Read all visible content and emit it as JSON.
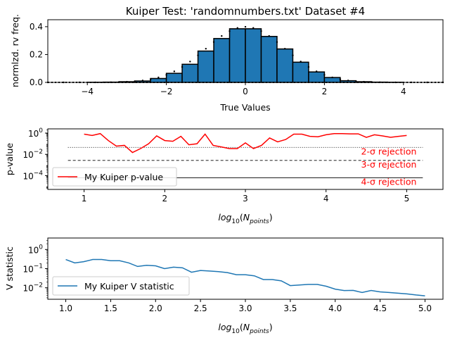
{
  "chart_data": [
    {
      "type": "bar",
      "title": "Kuiper Test: 'randomnumbers.txt' Dataset #4",
      "xlabel": "True Values",
      "ylabel": "normlzd. rv freq.",
      "xlim": [
        -5,
        5
      ],
      "ylim": [
        0,
        0.45
      ],
      "xticks": [
        -4,
        -2,
        0,
        2,
        4
      ],
      "xtick_labels": [
        "−4",
        "−2",
        "0",
        "2",
        "4"
      ],
      "yticks": [
        0.0,
        0.2,
        0.4
      ],
      "ytick_labels": [
        "0.0",
        "0.2",
        "0.4"
      ],
      "bar_color": "#1f77b4",
      "bin_edges": [
        -4.0,
        -3.6,
        -3.2,
        -2.8,
        -2.4,
        -2.0,
        -1.6,
        -1.2,
        -0.8,
        -0.4,
        0.0,
        0.4,
        0.8,
        1.2,
        1.6,
        2.0,
        2.4,
        2.8,
        3.2,
        3.6,
        4.0
      ],
      "bar_values": [
        0.001,
        0.002,
        0.005,
        0.01,
        0.028,
        0.065,
        0.13,
        0.225,
        0.315,
        0.385,
        0.385,
        0.33,
        0.24,
        0.145,
        0.075,
        0.035,
        0.012,
        0.005,
        0.002,
        0.001
      ],
      "reference_curve": {
        "style": "dotted",
        "x": [
          -5.0,
          -4.6,
          -4.2,
          -3.8,
          -3.4,
          -3.2,
          -3.0,
          -2.8,
          -2.6,
          -2.4,
          -2.2,
          -2.0,
          -1.8,
          -1.6,
          -1.4,
          -1.2,
          -1.0,
          -0.8,
          -0.6,
          -0.4,
          -0.2,
          0.0,
          0.2,
          0.4,
          0.6,
          0.8,
          1.0,
          1.2,
          1.4,
          1.6,
          1.8,
          2.0,
          2.2,
          2.4,
          2.6,
          2.8,
          3.0,
          3.4,
          3.8,
          4.2,
          4.6,
          5.0
        ],
        "y": [
          0.0,
          0.0,
          0.0001,
          0.0003,
          0.0012,
          0.0024,
          0.0044,
          0.0079,
          0.0136,
          0.0224,
          0.0355,
          0.054,
          0.079,
          0.1109,
          0.1497,
          0.1942,
          0.242,
          0.2897,
          0.3332,
          0.3683,
          0.391,
          0.3989,
          0.391,
          0.3683,
          0.3332,
          0.2897,
          0.242,
          0.1942,
          0.1497,
          0.1109,
          0.079,
          0.054,
          0.0355,
          0.0224,
          0.0136,
          0.0079,
          0.0044,
          0.0012,
          0.0003,
          0.0001,
          0.0,
          0.0
        ]
      }
    },
    {
      "type": "line",
      "ylabel": "p-value",
      "xlabel_math": {
        "base": "log",
        "sub": "10",
        "open": "(",
        "var": "N",
        "var_sub": "points",
        "close": ")"
      },
      "xlim": [
        0.55,
        5.45
      ],
      "ylog": true,
      "ylim_log10": [
        -5.3,
        0.4
      ],
      "xticks": [
        1,
        2,
        3,
        4,
        5
      ],
      "xtick_labels": [
        "1",
        "2",
        "3",
        "4",
        "5"
      ],
      "yticks_exp": [
        0,
        -2,
        -4
      ],
      "ytick_base": "10",
      "series": [
        {
          "name": "My Kuiper p-value",
          "color": "#ff0000",
          "x": [
            1.0,
            1.1,
            1.2,
            1.3,
            1.4,
            1.5,
            1.6,
            1.7,
            1.8,
            1.9,
            2.0,
            2.1,
            2.2,
            2.3,
            2.4,
            2.5,
            2.6,
            2.7,
            2.8,
            2.9,
            3.0,
            3.1,
            3.2,
            3.3,
            3.4,
            3.5,
            3.6,
            3.7,
            3.8,
            3.9,
            4.0,
            4.1,
            4.2,
            4.3,
            4.4,
            4.5,
            4.6,
            4.7,
            4.8,
            4.9,
            5.0
          ],
          "y": [
            0.8,
            0.6,
            0.9,
            0.2,
            0.06,
            0.07,
            0.015,
            0.035,
            0.1,
            0.55,
            0.2,
            0.17,
            0.5,
            0.08,
            0.1,
            0.8,
            0.07,
            0.05,
            0.035,
            0.035,
            0.12,
            0.035,
            0.07,
            0.35,
            0.15,
            0.25,
            0.8,
            0.8,
            0.5,
            0.45,
            0.7,
            0.9,
            0.9,
            0.85,
            0.85,
            0.4,
            0.7,
            0.55,
            0.4,
            0.5,
            0.6
          ]
        }
      ],
      "thresholds": [
        {
          "label": "2-σ rejection",
          "value": 0.0455,
          "style": "dotted"
        },
        {
          "label": "3-σ rejection",
          "value": 0.0027,
          "style": "dashed"
        },
        {
          "label": "4-σ rejection",
          "value": 6.3e-05,
          "style": "solid"
        }
      ],
      "threshold_xrange": [
        0.8,
        5.2
      ],
      "label_color": "#ff0000",
      "legend": "lower-left"
    },
    {
      "type": "line",
      "ylabel": "V statistic",
      "xlabel_math": {
        "base": "log",
        "sub": "10",
        "open": "(",
        "var": "N",
        "var_sub": "points",
        "close": ")"
      },
      "xlim": [
        0.8,
        5.2
      ],
      "ylog": true,
      "ylim_log10": [
        -2.6,
        0.6
      ],
      "xticks": [
        1.0,
        1.5,
        2.0,
        2.5,
        3.0,
        3.5,
        4.0,
        4.5,
        5.0
      ],
      "xtick_labels": [
        "1.0",
        "1.5",
        "2.0",
        "2.5",
        "3.0",
        "3.5",
        "4.0",
        "4.5",
        "5.0"
      ],
      "yticks_exp": [
        0,
        -1,
        -2
      ],
      "ytick_base": "10",
      "series": [
        {
          "name": "My Kuiper V statistic",
          "color": "#1f77b4",
          "x": [
            1.0,
            1.1,
            1.2,
            1.3,
            1.4,
            1.5,
            1.6,
            1.7,
            1.8,
            1.9,
            2.0,
            2.1,
            2.2,
            2.3,
            2.4,
            2.5,
            2.6,
            2.7,
            2.8,
            2.9,
            3.0,
            3.1,
            3.2,
            3.3,
            3.4,
            3.5,
            3.6,
            3.7,
            3.8,
            3.9,
            4.0,
            4.1,
            4.2,
            4.3,
            4.4,
            4.5,
            4.6,
            4.7,
            4.8,
            4.9,
            5.0
          ],
          "y": [
            0.3,
            0.2,
            0.23,
            0.3,
            0.3,
            0.26,
            0.26,
            0.2,
            0.13,
            0.15,
            0.14,
            0.1,
            0.12,
            0.11,
            0.065,
            0.08,
            0.075,
            0.07,
            0.062,
            0.048,
            0.048,
            0.042,
            0.027,
            0.027,
            0.023,
            0.013,
            0.014,
            0.015,
            0.015,
            0.012,
            0.0085,
            0.0072,
            0.0073,
            0.0057,
            0.0072,
            0.0061,
            0.0057,
            0.0052,
            0.0048,
            0.0042,
            0.0038
          ]
        }
      ],
      "legend": "lower-left"
    }
  ]
}
